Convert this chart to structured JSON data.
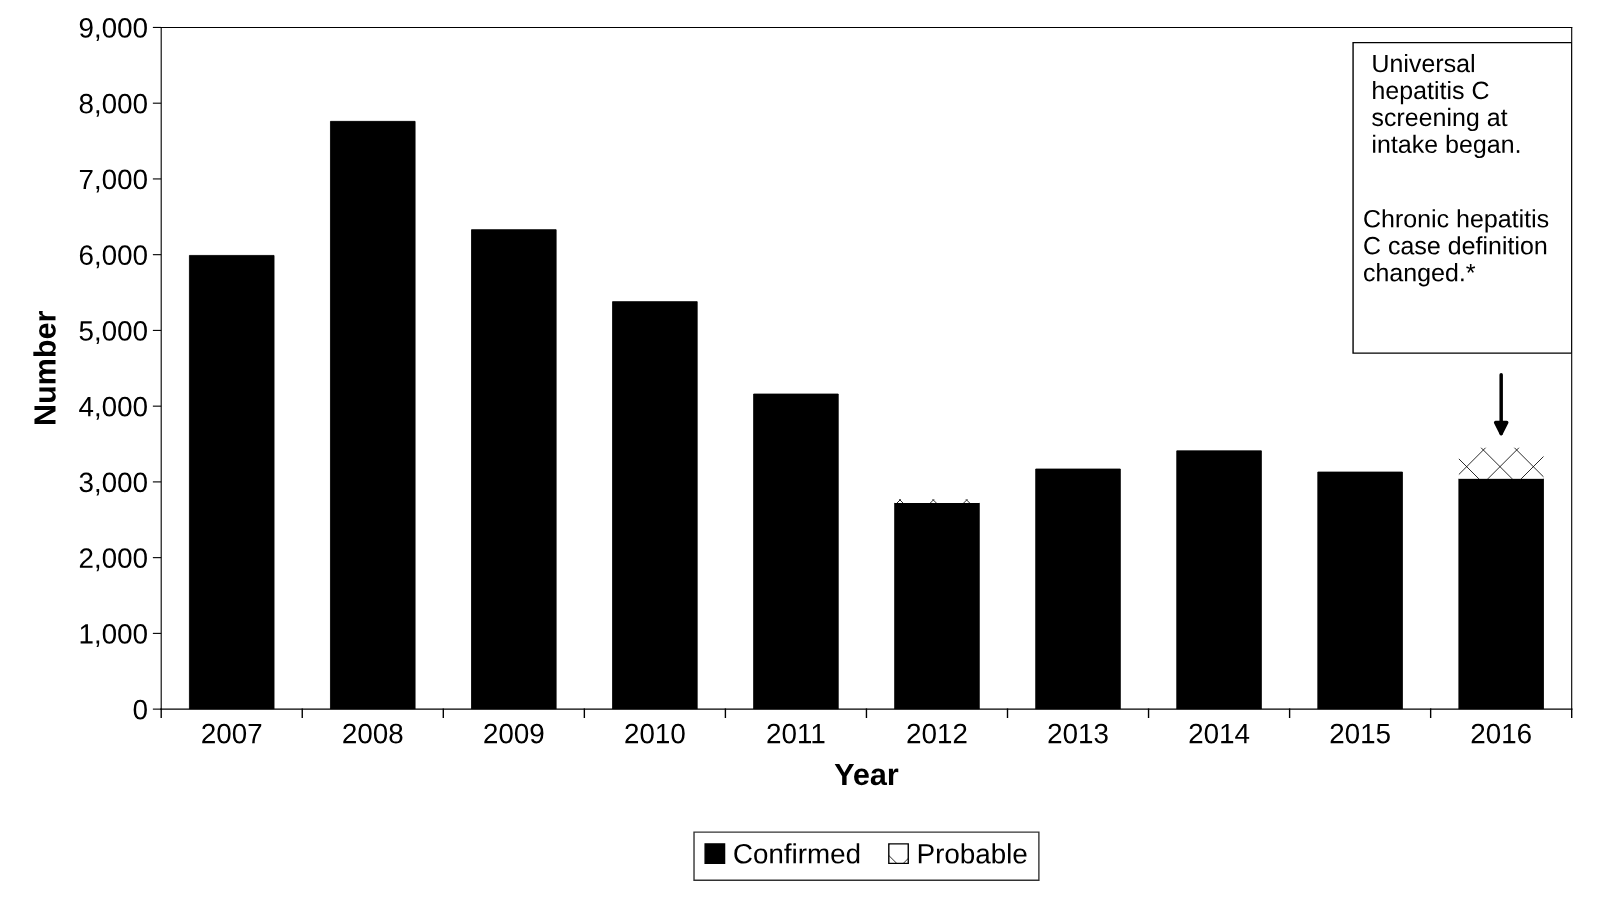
{
  "chart_data": {
    "type": "bar",
    "stacked": true,
    "xlabel": "Year",
    "ylabel": "Number",
    "categories": [
      "2007",
      "2008",
      "2009",
      "2010",
      "2011",
      "2012",
      "2013",
      "2014",
      "2015",
      "2016"
    ],
    "series": [
      {
        "name": "Confirmed",
        "color": "#000000",
        "values": [
          5990,
          7760,
          6330,
          5380,
          4160,
          2720,
          3170,
          3410,
          3130,
          3040
        ]
      },
      {
        "name": "Probable",
        "color": "#ffffff",
        "values": [
          null,
          null,
          null,
          null,
          null,
          50,
          null,
          null,
          null,
          410
        ]
      }
    ],
    "ylim": [
      0,
      9000
    ],
    "yticks": [
      {
        "value": 0,
        "label": "0"
      },
      {
        "value": 1000,
        "label": "1,000"
      },
      {
        "value": 2000,
        "label": "2,000"
      },
      {
        "value": 3000,
        "label": "3,000"
      },
      {
        "value": 4000,
        "label": "4,000"
      },
      {
        "value": 5000,
        "label": "5,000"
      },
      {
        "value": 6000,
        "label": "6,000"
      },
      {
        "value": 7000,
        "label": "7,000"
      },
      {
        "value": 8000,
        "label": "8,000"
      },
      {
        "value": 9000,
        "label": "9,000"
      }
    ],
    "grid": false,
    "legend": "bottom",
    "annotations": [
      "Universal\nhepatitis C\nscreening at\nintake began.",
      "Chronic hepatitis\nC case definition\nchanged.*"
    ]
  }
}
